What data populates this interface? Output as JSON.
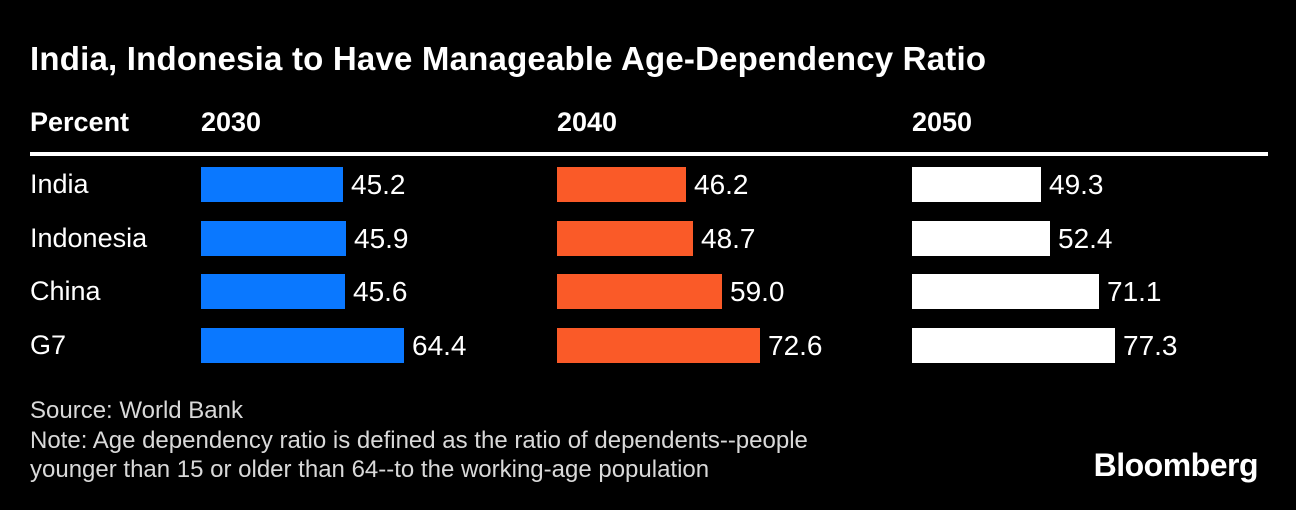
{
  "title": "India, Indonesia to Have Manageable Age-Dependency Ratio",
  "unit_label": "Percent",
  "chart_data": {
    "type": "bar",
    "orientation": "horizontal",
    "title": "India, Indonesia to Have Manageable Age-Dependency Ratio",
    "unit": "Percent",
    "categories": [
      "India",
      "Indonesia",
      "China",
      "G7"
    ],
    "series": [
      {
        "name": "2030",
        "color": "#0a78ff",
        "values": [
          45.2,
          45.9,
          45.6,
          64.4
        ]
      },
      {
        "name": "2040",
        "color": "#fa5a28",
        "values": [
          46.2,
          48.7,
          59.0,
          72.6
        ]
      },
      {
        "name": "2050",
        "color": "#ffffff",
        "values": [
          49.3,
          52.4,
          71.1,
          77.3
        ]
      }
    ],
    "value_labels": true,
    "grid": false,
    "legend": "column headers 2030 / 2040 / 2050 above each bar group",
    "layout_hint": "small multiples; each year column scaled independently so its maximum bar (G7) has equal width"
  },
  "footer": {
    "source": "Source: World Bank",
    "note_line1": "Note: Age dependency ratio is defined as the ratio of dependents--people",
    "note_line2": "younger than 15 or older than 64--to the working-age population",
    "brand": "Bloomberg"
  },
  "colors": {
    "background": "#000000",
    "bar_2030": "#0a78ff",
    "bar_2040": "#fa5a28",
    "bar_2050": "#ffffff",
    "text": "#ffffff",
    "footer_text": "#d9d9d9",
    "divider": "#ffffff"
  }
}
